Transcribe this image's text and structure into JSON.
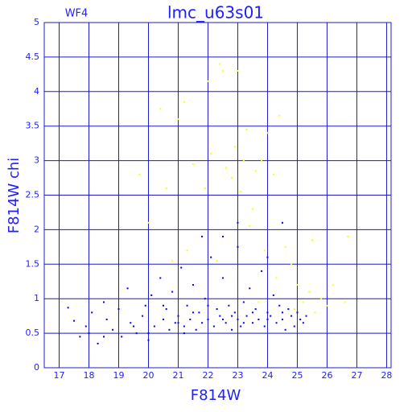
{
  "chart_data": {
    "type": "scatter",
    "title": "lmc_u63s01",
    "subtitle": "WF4",
    "x_label": "F814W",
    "y_label": "F814W chi",
    "xlim": [
      16.5,
      28.15
    ],
    "ylim": [
      0,
      5
    ],
    "xticks": [
      17,
      18,
      19,
      20,
      21,
      22,
      23,
      24,
      25,
      26,
      27,
      28
    ],
    "yticks": [
      0,
      0.5,
      1,
      1.5,
      2,
      2.5,
      3,
      3.5,
      4,
      4.5,
      5
    ],
    "grid": true,
    "grid_color": "#1c1cc8",
    "series": [
      {
        "color": "#0000ff",
        "x": [
          17.3,
          17.5,
          17.7,
          17.9,
          18.0,
          18.1,
          18.3,
          18.5,
          18.6,
          18.8,
          19.0,
          19.1,
          19.3,
          19.4,
          19.6,
          19.8,
          19.9,
          20.0,
          20.1,
          20.2,
          20.4,
          20.5,
          20.6,
          20.7,
          20.8,
          20.9,
          21.0,
          21.1,
          21.2,
          21.3,
          21.4,
          21.5,
          21.6,
          21.7,
          21.8,
          21.9,
          22.0,
          22.1,
          22.2,
          22.3,
          22.4,
          22.5,
          22.6,
          22.7,
          22.8,
          22.9,
          23.0,
          23.0,
          23.1,
          23.2,
          23.3,
          23.4,
          23.5,
          23.6,
          23.7,
          23.8,
          23.9,
          24.0,
          24.1,
          24.2,
          24.3,
          24.4,
          24.5,
          24.6,
          24.7,
          24.8,
          24.9,
          25.0,
          25.1,
          25.2,
          25.3,
          21.5,
          22.0,
          22.5,
          23.5,
          24.0,
          23.2,
          22.8,
          24.5,
          21.0,
          20.5,
          19.5,
          23.0,
          22.5,
          24.5,
          21.8,
          24.0,
          20.0,
          18.5,
          21.2
        ],
        "y": [
          0.87,
          0.68,
          0.45,
          0.6,
          0.5,
          0.8,
          0.35,
          0.95,
          0.7,
          0.55,
          0.85,
          0.45,
          1.15,
          0.65,
          0.5,
          0.75,
          0.9,
          0.4,
          1.05,
          0.6,
          1.3,
          0.7,
          0.85,
          0.55,
          1.1,
          0.65,
          0.75,
          1.45,
          0.6,
          0.9,
          0.7,
          1.2,
          0.55,
          0.8,
          0.65,
          1.0,
          0.7,
          1.6,
          0.6,
          0.85,
          0.75,
          1.3,
          0.65,
          0.9,
          0.55,
          0.8,
          0.7,
          1.75,
          0.6,
          0.95,
          0.75,
          1.15,
          0.65,
          0.85,
          0.7,
          1.4,
          0.6,
          0.8,
          0.75,
          1.05,
          0.65,
          0.9,
          0.7,
          0.55,
          0.85,
          0.75,
          0.6,
          0.8,
          0.7,
          0.65,
          0.75,
          0.8,
          0.9,
          0.7,
          0.8,
          0.7,
          0.65,
          0.75,
          0.8,
          0.65,
          0.9,
          0.6,
          2.1,
          1.9,
          2.1,
          1.9,
          1.6,
          0.5,
          0.45,
          0.5
        ]
      },
      {
        "color": "#ffff00",
        "x": [
          19.7,
          20.0,
          20.4,
          20.6,
          21.0,
          21.2,
          21.5,
          21.9,
          22.0,
          22.1,
          22.4,
          22.5,
          22.6,
          22.8,
          22.9,
          23.0,
          23.1,
          23.2,
          23.3,
          23.4,
          23.5,
          23.6,
          23.8,
          24.0,
          24.2,
          24.4,
          24.6,
          24.8,
          25.0,
          25.2,
          25.4,
          25.6,
          25.8,
          26.0,
          26.2,
          26.6,
          26.7,
          25.5,
          24.9,
          23.9,
          21.3,
          22.3,
          20.8,
          23.7,
          24.3
        ],
        "y": [
          2.8,
          2.1,
          3.75,
          2.6,
          3.6,
          3.85,
          2.95,
          2.6,
          4.15,
          3.1,
          4.4,
          4.3,
          2.9,
          2.75,
          3.2,
          4.3,
          2.55,
          3.0,
          3.45,
          2.05,
          2.3,
          2.85,
          3.0,
          3.4,
          2.8,
          3.65,
          1.75,
          1.5,
          1.2,
          0.95,
          1.1,
          0.8,
          1.0,
          0.9,
          1.2,
          0.95,
          1.9,
          1.85,
          0.85,
          1.7,
          1.7,
          1.55,
          1.55,
          0.95,
          1.3
        ]
      }
    ]
  }
}
